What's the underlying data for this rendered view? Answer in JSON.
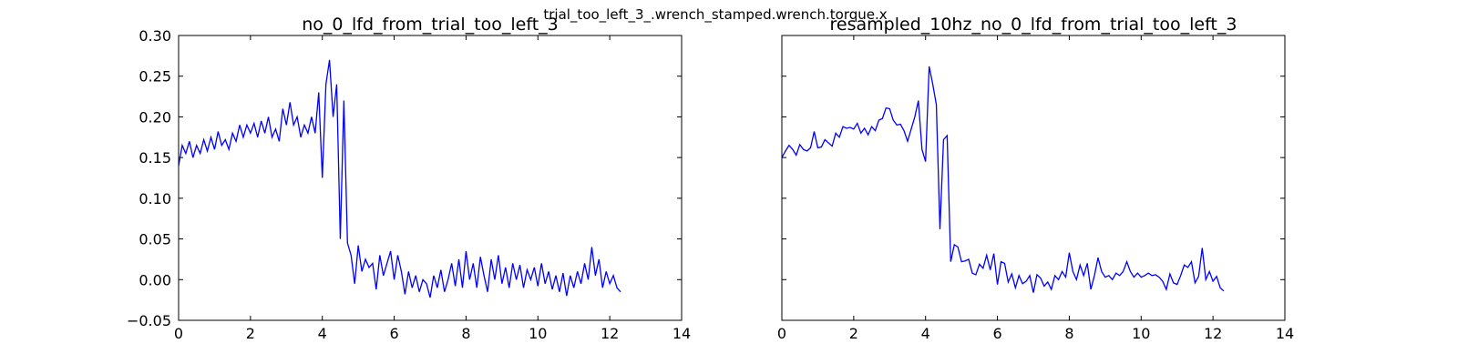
{
  "title": "trial_too_left_3_.wrench_stamped.wrench.torque.x",
  "chart_data": [
    {
      "type": "line",
      "title": "no_0_lfd_from_trial_too_left_3",
      "x": [
        0.0,
        0.1,
        0.2,
        0.3,
        0.4,
        0.5,
        0.6,
        0.7,
        0.8,
        0.9,
        1.0,
        1.1,
        1.2,
        1.3,
        1.4,
        1.5,
        1.6,
        1.7,
        1.8,
        1.9,
        2.0,
        2.1,
        2.2,
        2.3,
        2.4,
        2.5,
        2.6,
        2.7,
        2.8,
        2.9,
        3.0,
        3.1,
        3.2,
        3.3,
        3.4,
        3.5,
        3.6,
        3.7,
        3.8,
        3.9,
        4.0,
        4.1,
        4.2,
        4.3,
        4.4,
        4.5,
        4.6,
        4.7,
        4.8,
        4.9,
        5.0,
        5.1,
        5.2,
        5.3,
        5.4,
        5.5,
        5.6,
        5.7,
        5.8,
        5.9,
        6.0,
        6.1,
        6.2,
        6.3,
        6.4,
        6.5,
        6.6,
        6.7,
        6.8,
        6.9,
        7.0,
        7.1,
        7.2,
        7.3,
        7.4,
        7.5,
        7.6,
        7.7,
        7.8,
        7.9,
        8.0,
        8.1,
        8.2,
        8.3,
        8.4,
        8.5,
        8.6,
        8.7,
        8.8,
        8.9,
        9.0,
        9.1,
        9.2,
        9.3,
        9.4,
        9.5,
        9.6,
        9.7,
        9.8,
        9.9,
        10.0,
        10.1,
        10.2,
        10.3,
        10.4,
        10.5,
        10.6,
        10.7,
        10.8,
        10.9,
        11.0,
        11.1,
        11.2,
        11.3,
        11.4,
        11.5,
        11.6,
        11.7,
        11.8,
        11.9,
        12.0,
        12.1,
        12.2,
        12.3
      ],
      "series": [
        {
          "color": "#0000ff",
          "values": [
            0.14,
            0.165,
            0.155,
            0.17,
            0.15,
            0.165,
            0.155,
            0.172,
            0.158,
            0.175,
            0.16,
            0.182,
            0.165,
            0.172,
            0.16,
            0.18,
            0.17,
            0.19,
            0.175,
            0.19,
            0.18,
            0.192,
            0.175,
            0.195,
            0.18,
            0.2,
            0.175,
            0.185,
            0.17,
            0.21,
            0.19,
            0.218,
            0.19,
            0.2,
            0.175,
            0.19,
            0.18,
            0.2,
            0.18,
            0.23,
            0.125,
            0.24,
            0.27,
            0.2,
            0.24,
            0.05,
            0.22,
            0.045,
            0.03,
            -0.005,
            0.042,
            0.01,
            0.025,
            0.015,
            0.02,
            -0.012,
            0.03,
            0.005,
            0.02,
            0.035,
            0.0,
            0.03,
            0.01,
            -0.018,
            0.01,
            -0.01,
            0.005,
            -0.015,
            0.0,
            -0.005,
            -0.022,
            0.005,
            -0.01,
            0.012,
            -0.015,
            0.0,
            0.02,
            -0.008,
            0.025,
            -0.01,
            0.035,
            0.0,
            0.02,
            -0.01,
            0.028,
            0.005,
            -0.015,
            0.025,
            0.0,
            0.03,
            -0.005,
            0.015,
            -0.01,
            0.02,
            0.0,
            0.018,
            -0.01,
            0.012,
            0.0,
            0.015,
            -0.008,
            0.02,
            -0.005,
            0.01,
            -0.012,
            0.005,
            -0.015,
            0.008,
            -0.02,
            0.005,
            -0.01,
            0.01,
            -0.005,
            0.02,
            0.0,
            0.04,
            0.005,
            0.025,
            -0.01,
            0.01,
            -0.005,
            0.005,
            -0.01,
            -0.015
          ]
        }
      ],
      "xlim": [
        0,
        14
      ],
      "xticks": [
        0,
        2,
        4,
        6,
        8,
        10,
        12,
        14
      ],
      "ylim": [
        -0.05,
        0.3
      ],
      "yticks": [
        {
          "value": -0.05,
          "label": "−0.05"
        },
        {
          "value": 0.0,
          "label": "0.00"
        },
        0.05,
        {
          "value": 0.1,
          "label": "0.10"
        },
        0.15,
        {
          "value": 0.2,
          "label": "0.20"
        },
        0.25,
        {
          "value": 0.3,
          "label": "0.30"
        }
      ]
    },
    {
      "type": "line",
      "title": "resampled_10hz_no_0_lfd_from_trial_too_left_3",
      "x": [
        0.0,
        0.1,
        0.2,
        0.3,
        0.4,
        0.5,
        0.6,
        0.7,
        0.8,
        0.9,
        1.0,
        1.1,
        1.2,
        1.3,
        1.4,
        1.5,
        1.6,
        1.7,
        1.8,
        1.9,
        2.0,
        2.1,
        2.2,
        2.3,
        2.4,
        2.5,
        2.6,
        2.7,
        2.8,
        2.9,
        3.0,
        3.1,
        3.2,
        3.3,
        3.4,
        3.5,
        3.6,
        3.7,
        3.8,
        3.9,
        4.0,
        4.1,
        4.2,
        4.3,
        4.4,
        4.5,
        4.6,
        4.7,
        4.8,
        4.9,
        5.0,
        5.1,
        5.2,
        5.3,
        5.4,
        5.5,
        5.6,
        5.7,
        5.8,
        5.9,
        6.0,
        6.1,
        6.2,
        6.3,
        6.4,
        6.5,
        6.6,
        6.7,
        6.8,
        6.9,
        7.0,
        7.1,
        7.2,
        7.3,
        7.4,
        7.5,
        7.6,
        7.7,
        7.8,
        7.9,
        8.0,
        8.1,
        8.2,
        8.3,
        8.4,
        8.5,
        8.6,
        8.7,
        8.8,
        8.9,
        9.0,
        9.1,
        9.2,
        9.3,
        9.4,
        9.5,
        9.6,
        9.7,
        9.8,
        9.9,
        10.0,
        10.1,
        10.2,
        10.3,
        10.4,
        10.5,
        10.6,
        10.7,
        10.8,
        10.9,
        11.0,
        11.1,
        11.2,
        11.3,
        11.4,
        11.5,
        11.6,
        11.7,
        11.8,
        11.9,
        12.0,
        12.1,
        12.2,
        12.3
      ],
      "series": [
        {
          "color": "#0000ff",
          "values": [
            0.15,
            0.158,
            0.165,
            0.16,
            0.153,
            0.166,
            0.16,
            0.158,
            0.162,
            0.182,
            0.162,
            0.163,
            0.172,
            0.168,
            0.164,
            0.18,
            0.175,
            0.188,
            0.186,
            0.187,
            0.185,
            0.192,
            0.18,
            0.186,
            0.178,
            0.188,
            0.183,
            0.196,
            0.198,
            0.211,
            0.21,
            0.196,
            0.19,
            0.191,
            0.183,
            0.17,
            0.185,
            0.2,
            0.22,
            0.16,
            0.145,
            0.262,
            0.24,
            0.215,
            0.062,
            0.172,
            0.177,
            0.022,
            0.043,
            0.04,
            0.022,
            0.023,
            0.025,
            0.008,
            0.006,
            0.019,
            0.014,
            0.03,
            0.012,
            0.032,
            -0.006,
            0.022,
            0.02,
            -0.003,
            0.007,
            -0.01,
            0.005,
            -0.005,
            -0.002,
            0.005,
            -0.016,
            0.006,
            0.002,
            -0.008,
            -0.003,
            -0.012,
            0.005,
            0.0,
            0.01,
            0.003,
            0.033,
            0.01,
            0.0,
            0.018,
            0.005,
            0.02,
            -0.012,
            0.005,
            0.027,
            0.01,
            0.003,
            0.005,
            0.0,
            0.008,
            0.005,
            0.01,
            0.022,
            0.01,
            0.003,
            0.008,
            0.003,
            0.005,
            0.008,
            0.005,
            0.006,
            0.003,
            -0.002,
            -0.012,
            0.007,
            -0.004,
            -0.006,
            0.005,
            0.018,
            0.015,
            0.022,
            -0.004,
            0.004,
            0.039,
            0.0,
            0.01,
            -0.002,
            0.004,
            -0.01,
            -0.014
          ]
        }
      ],
      "xlim": [
        0,
        14
      ],
      "xticks": [
        0,
        2,
        4,
        6,
        8,
        10,
        12,
        14
      ],
      "sharey": true
    }
  ]
}
